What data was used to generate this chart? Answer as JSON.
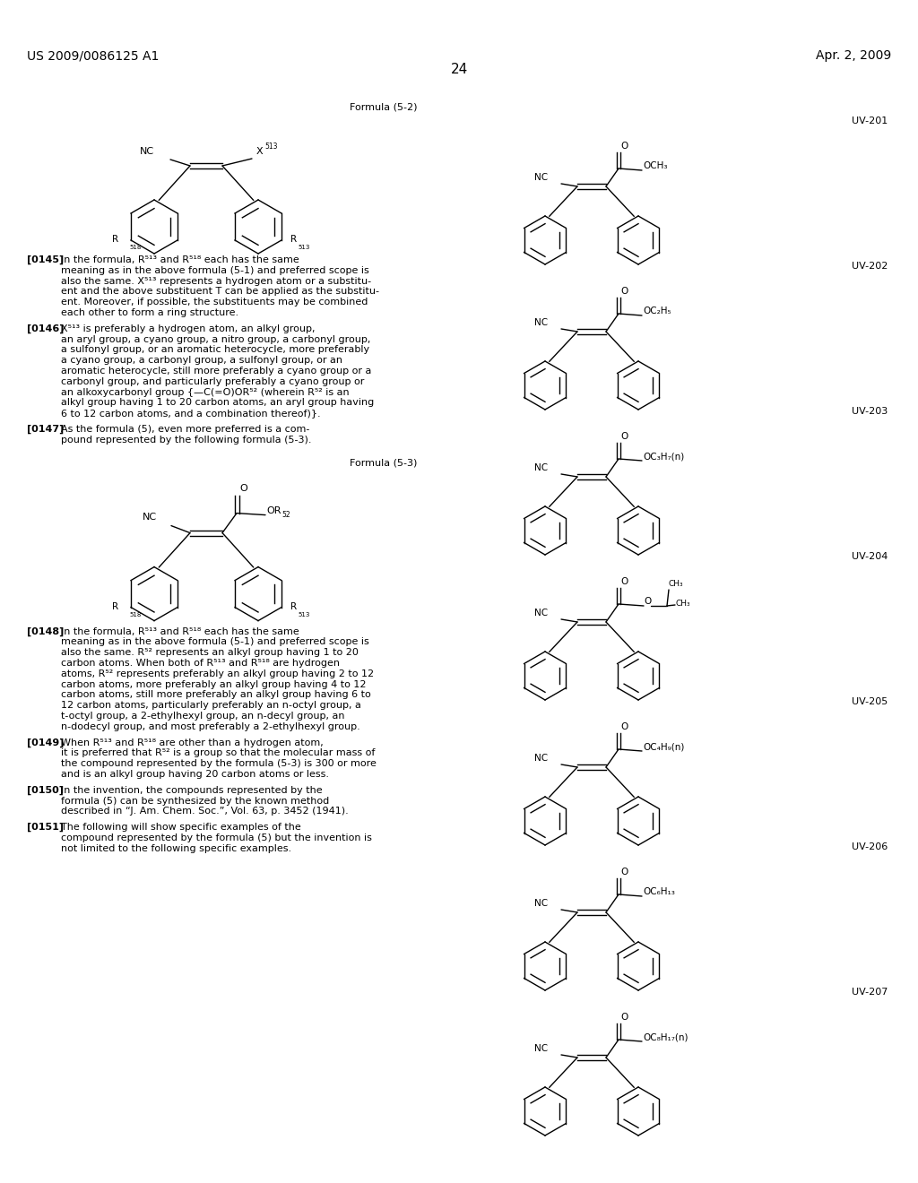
{
  "background_color": "#ffffff",
  "header_left": "US 2009/0086125 A1",
  "header_right": "Apr. 2, 2009",
  "page_number": "24",
  "formula52_label": "Formula (5-2)",
  "formula53_label": "Formula (5-3)",
  "uv_labels": [
    "UV-201",
    "UV-202",
    "UV-203",
    "UV-204",
    "UV-205",
    "UV-206",
    "UV-207"
  ],
  "uv_esters": [
    "OCH₃",
    "OC₂H₅",
    "OC₃H₇(n)",
    null,
    "OC₄H₉(n)",
    "OC₆H₁₃",
    "OC₈H₁₇(n)"
  ],
  "paragraphs": [
    {
      "tag": "[0145]",
      "lines": [
        "In the formula, R⁵¹³ and R⁵¹⁸ each has the same",
        "meaning as in the above formula (5-1) and preferred scope is",
        "also the same. X⁵¹³ represents a hydrogen atom or a substitu-",
        "ent and the above substituent T can be applied as the substitu-",
        "ent. Moreover, if possible, the substituents may be combined",
        "each other to form a ring structure."
      ]
    },
    {
      "tag": "[0146]",
      "lines": [
        "X⁵¹³ is preferably a hydrogen atom, an alkyl group,",
        "an aryl group, a cyano group, a nitro group, a carbonyl group,",
        "a sulfonyl group, or an aromatic heterocycle, more preferably",
        "a cyano group, a carbonyl group, a sulfonyl group, or an",
        "aromatic heterocycle, still more preferably a cyano group or a",
        "carbonyl group, and particularly preferably a cyano group or",
        "an alkoxycarbonyl group {—C(=O)OR⁵² (wherein R⁵² is an",
        "alkyl group having 1 to 20 carbon atoms, an aryl group having",
        "6 to 12 carbon atoms, and a combination thereof)}."
      ]
    },
    {
      "tag": "[0147]",
      "lines": [
        "As the formula (5), even more preferred is a com-",
        "pound represented by the following formula (5-3)."
      ]
    },
    {
      "tag": "[0148]",
      "lines": [
        "In the formula, R⁵¹³ and R⁵¹⁸ each has the same",
        "meaning as in the above formula (5-1) and preferred scope is",
        "also the same. R⁵² represents an alkyl group having 1 to 20",
        "carbon atoms. When both of R⁵¹³ and R⁵¹⁸ are hydrogen",
        "atoms, R⁵² represents preferably an alkyl group having 2 to 12",
        "carbon atoms, more preferably an alkyl group having 4 to 12",
        "carbon atoms, still more preferably an alkyl group having 6 to",
        "12 carbon atoms, particularly preferably an n-octyl group, a",
        "t-octyl group, a 2-ethylhexyl group, an n-decyl group, an",
        "n-dodecyl group, and most preferably a 2-ethylhexyl group."
      ]
    },
    {
      "tag": "[0149]",
      "lines": [
        "When R⁵¹³ and R⁵¹⁸ are other than a hydrogen atom,",
        "it is preferred that R⁵² is a group so that the molecular mass of",
        "the compound represented by the formula (5-3) is 300 or more",
        "and is an alkyl group having 20 carbon atoms or less."
      ]
    },
    {
      "tag": "[0150]",
      "lines": [
        "In the invention, the compounds represented by the",
        "formula (5) can be synthesized by the known method",
        "described in “J. Am. Chem. Soc.”, Vol. 63, p. 3452 (1941)."
      ]
    },
    {
      "tag": "[0151]",
      "lines": [
        "The following will show specific examples of the",
        "compound represented by the formula (5) but the invention is",
        "not limited to the following specific examples."
      ]
    }
  ]
}
